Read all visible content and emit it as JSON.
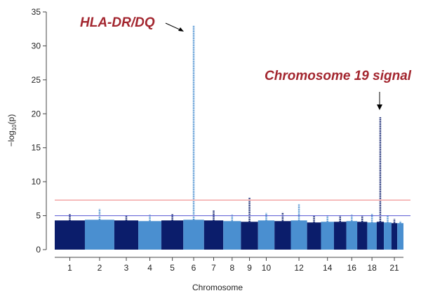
{
  "chart_data": {
    "type": "manhattan",
    "xlabel": "Chromosome",
    "ylabel": [
      "−log",
      "10",
      "(p)"
    ],
    "categories": [
      "1",
      "2",
      "3",
      "4",
      "5",
      "6",
      "7",
      "8",
      "9",
      "10",
      null,
      "12",
      null,
      "14",
      null,
      "16",
      null,
      "18",
      null,
      null,
      "21",
      null
    ],
    "widths": [
      249,
      243,
      198,
      191,
      181,
      171,
      159,
      146,
      141,
      136,
      135,
      134,
      115,
      107,
      102,
      90,
      83,
      78,
      59,
      63,
      48,
      51
    ],
    "bulk": [
      4.3,
      4.4,
      4.3,
      4.2,
      4.3,
      4.4,
      4.3,
      4.2,
      4.1,
      4.3,
      4.2,
      4.3,
      4.0,
      4.1,
      4.1,
      4.2,
      4.1,
      4.0,
      4.1,
      4.0,
      3.9,
      3.9
    ],
    "values": [
      5.2,
      6.0,
      5.0,
      5.2,
      5.2,
      33.0,
      5.8,
      5.2,
      7.7,
      5.4,
      5.5,
      6.7,
      5.0,
      5.0,
      5.0,
      5.2,
      5.0,
      5.3,
      19.5,
      5.0,
      4.5,
      4.2
    ],
    "colors": [
      "#0b1d6b",
      "#4a8fd0"
    ],
    "ylim": [
      0,
      35
    ],
    "yticks": [
      0,
      5,
      10,
      15,
      20,
      25,
      30,
      35
    ],
    "hlines": [
      {
        "value": 7.3,
        "color": "#f08a8a"
      },
      {
        "value": 5,
        "color": "#6a6ad8"
      }
    ],
    "annotations": [
      "HLA-DR/DQ",
      "Chromosome 19 signal"
    ]
  }
}
